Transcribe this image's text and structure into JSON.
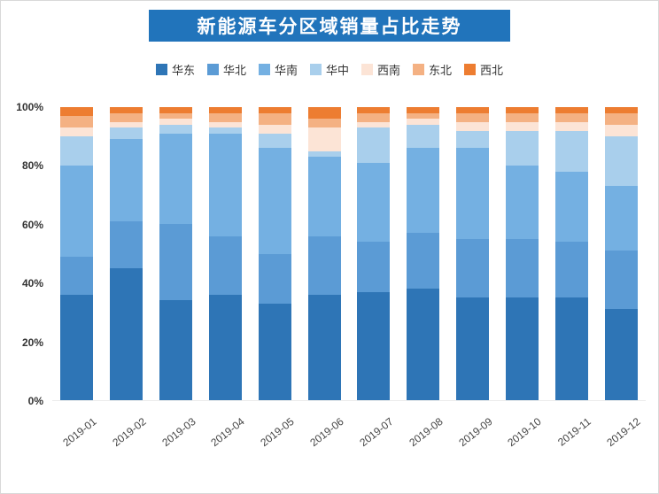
{
  "page": {
    "title": "新能源车分区域销量占比走势"
  },
  "colors": {
    "banner": "#2174bb",
    "title_text": "#ffffff",
    "axis_label": "#333333",
    "x_label": "#444444"
  },
  "chart_data": {
    "type": "bar",
    "stacked": true,
    "value_format": "percent",
    "title": "新能源车分区域销量占比走势",
    "legend_position": "top",
    "grid": false,
    "ylim": [
      0,
      100
    ],
    "y_ticks": [
      {
        "label": "0%",
        "value": 0
      },
      {
        "label": "20%",
        "value": 20
      },
      {
        "label": "40%",
        "value": 40
      },
      {
        "label": "60%",
        "value": 60
      },
      {
        "label": "80%",
        "value": 80
      },
      {
        "label": "100%",
        "value": 100
      }
    ],
    "categories": [
      "2019-01",
      "2019-02",
      "2019-03",
      "2019-04",
      "2019-05",
      "2019-06",
      "2019-07",
      "2019-08",
      "2019-09",
      "2019-10",
      "2019-11",
      "2019-12"
    ],
    "series": [
      {
        "name": "华东",
        "color": "#2e75b6",
        "values": [
          36,
          45,
          34,
          36,
          33,
          36,
          37,
          38,
          35,
          35,
          35,
          31
        ]
      },
      {
        "name": "华北",
        "color": "#5b9bd5",
        "values": [
          13,
          16,
          26,
          20,
          17,
          20,
          17,
          19,
          20,
          20,
          19,
          20
        ]
      },
      {
        "name": "华南",
        "color": "#74b0e2",
        "values": [
          31,
          28,
          31,
          35,
          36,
          27,
          27,
          29,
          31,
          25,
          24,
          22
        ]
      },
      {
        "name": "华中",
        "color": "#a9cfec",
        "values": [
          10,
          4,
          3,
          2,
          5,
          2,
          12,
          8,
          6,
          12,
          14,
          17
        ]
      },
      {
        "name": "西南",
        "color": "#fce4d6",
        "values": [
          3,
          2,
          2,
          2,
          3,
          8,
          2,
          2,
          3,
          3,
          3,
          4
        ]
      },
      {
        "name": "东北",
        "color": "#f4b183",
        "values": [
          4,
          3,
          2,
          3,
          4,
          3,
          3,
          2,
          3,
          3,
          3,
          4
        ]
      },
      {
        "name": "西北",
        "color": "#ed7d31",
        "values": [
          3,
          2,
          2,
          2,
          2,
          4,
          2,
          2,
          2,
          2,
          2,
          2
        ]
      }
    ]
  }
}
